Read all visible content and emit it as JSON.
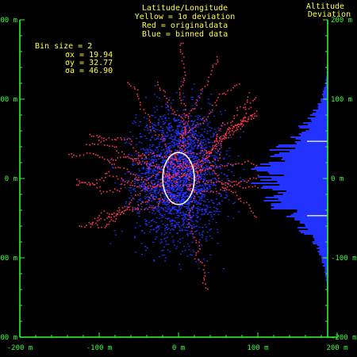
{
  "header": {
    "title": "Latitude/Longitude",
    "legend_yellow": "Yellow = 1σ deviation",
    "legend_red": "Red = originaldata",
    "legend_blue": "Blue = binned data",
    "right_title_line1": "Altitude",
    "right_title_line2": "Deviation"
  },
  "stats": {
    "bin_size_label": "Bin size = 2",
    "sigma_x_label": "σx = 19.94",
    "sigma_y_label": "σy = 32.77",
    "sigma_a_label": "σa = 46.90",
    "sigma_x": 19.94,
    "sigma_y": 32.77,
    "sigma_a": 46.9
  },
  "colors": {
    "axis": "#33ff33",
    "title": "#ffff44",
    "original": "#ff3355",
    "binned": "#2233ff",
    "sigma_ellipse": "#ffffff",
    "background": "#000000"
  },
  "chart_data": [
    {
      "type": "scatter",
      "title": "Latitude/Longitude",
      "xlabel": "",
      "ylabel": "",
      "xlim": [
        -200,
        200
      ],
      "ylim": [
        -200,
        200
      ],
      "x_ticks": [
        -200,
        -100,
        0,
        100,
        200
      ],
      "y_ticks": [
        -200,
        -100,
        0,
        100,
        200
      ],
      "x_tick_labels": [
        "-200 m",
        "-100 m",
        "0 m",
        "100 m",
        "200 m"
      ],
      "y_tick_labels": [
        "200 m",
        "100 m",
        "0 m",
        "-100 m",
        "-200 m"
      ],
      "series": [
        {
          "name": "originaldata",
          "color": "#ff3355",
          "approx_extent": {
            "x": [
              -140,
              100
            ],
            "y": [
              -200,
              175
            ]
          }
        },
        {
          "name": "binned data",
          "color": "#2233ff",
          "approx_extent": {
            "x": [
              -90,
              90
            ],
            "y": [
              -130,
              150
            ]
          }
        }
      ],
      "sigma_ellipse": {
        "center": [
          0,
          0
        ],
        "sigma_x": 19.94,
        "sigma_y": 32.77
      },
      "grid": false
    },
    {
      "type": "bar",
      "orientation": "horizontal",
      "title": "Altitude Deviation",
      "ylim": [
        -200,
        200
      ],
      "y_ticks": [
        -200,
        -100,
        0,
        100,
        200
      ],
      "y_tick_labels": [
        "200 m",
        "100 m",
        "0 m",
        "-100 m",
        "-200 m"
      ],
      "distribution": {
        "mean": 0,
        "sigma": 46.9,
        "peak_fraction": 1.0
      },
      "sigma_markers": [
        46.9,
        -46.9
      ]
    }
  ]
}
